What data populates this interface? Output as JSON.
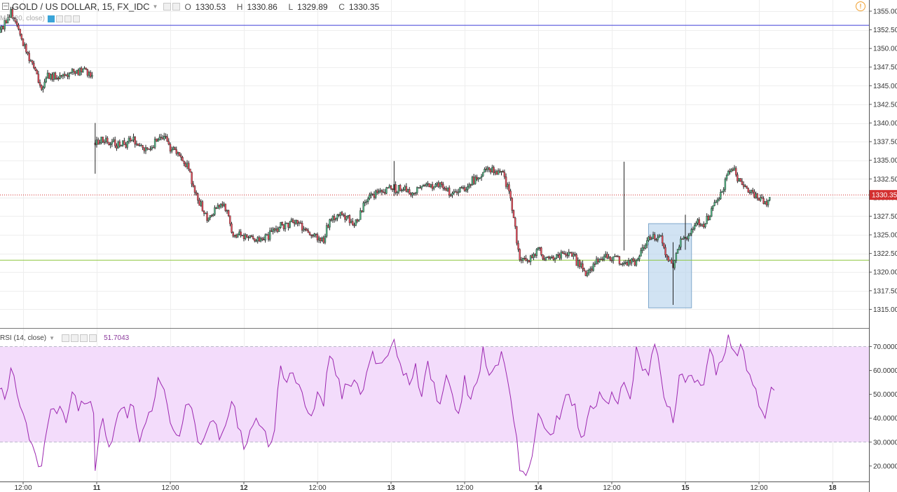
{
  "header": {
    "symbol": "GOLD / US DOLLAR, 15, FX_IDC",
    "open_label": "O",
    "open": "1330.53",
    "high_label": "H",
    "high": "1330.86",
    "low_label": "L",
    "low": "1329.89",
    "close_label": "C",
    "close": "1330.35"
  },
  "ma_legend": "MA (20, close)",
  "rsi_legend": {
    "label": "RSI (14, close)",
    "value": "51.7043"
  },
  "icons": [
    "minimize-icon",
    "caret-down-icon",
    "eye-icon",
    "gear-icon",
    "plus-icon",
    "close-icon",
    "alert-icon"
  ],
  "colors": {
    "up_candle": "#53b987",
    "down_candle": "#eb4d5c",
    "wick": "#222222",
    "rsi_line": "#9c27b0",
    "rsi_band": "#f3dcfb",
    "resistance_line": "#3f3fd8",
    "support_line": "#8dc63f",
    "last_price_line": "#d32f2f",
    "highlight_box": "#b8d4ec"
  },
  "chart_data": [
    {
      "type": "candlestick",
      "title": "GOLD / US DOLLAR, 15, FX_IDC",
      "x_ticks": [
        "12:00",
        "11",
        "12:00",
        "12",
        "12:00",
        "13",
        "12:00",
        "14",
        "12:00",
        "15",
        "12:00",
        "18"
      ],
      "y_ticks": [
        "1355.00",
        "1352.50",
        "1350.00",
        "1347.50",
        "1345.00",
        "1342.50",
        "1340.00",
        "1337.50",
        "1335.00",
        "1332.50",
        "1330.00",
        "1327.50",
        "1325.00",
        "1322.50",
        "1320.00",
        "1317.50",
        "1315.00"
      ],
      "ylim": [
        1312.5,
        1356.5
      ],
      "last_price": 1330.35,
      "last_price_label": "1330.35",
      "horizontal_lines": [
        {
          "name": "resistance",
          "value": 1353.1
        },
        {
          "name": "support",
          "value": 1321.6
        }
      ],
      "highlight_range": {
        "from": "14 18:00",
        "to": "15 01:00",
        "price_low": 1315.2,
        "price_high": 1326.5
      },
      "price_path": [
        [
          "10 08:00",
          1352.0
        ],
        [
          "10 10:00",
          1354.8
        ],
        [
          "10 11:00",
          1353.3
        ],
        [
          "10 12:00",
          1350.6
        ],
        [
          "10 14:00",
          1347.2
        ],
        [
          "10 15:00",
          1344.2
        ],
        [
          "10 16:00",
          1346.3
        ],
        [
          "10 18:00",
          1346.0
        ],
        [
          "10 20:00",
          1347.1
        ],
        [
          "10 22:00",
          1347.0
        ],
        [
          "10 23:30",
          1346.1
        ],
        [
          "10 23:45",
          1337.0
        ],
        [
          "11 01:00",
          1337.8
        ],
        [
          "11 04:00",
          1337.0
        ],
        [
          "11 06:00",
          1337.5
        ],
        [
          "11 08:00",
          1336.5
        ],
        [
          "11 09:00",
          1336.8
        ],
        [
          "11 10:00",
          1338.4
        ],
        [
          "11 11:00",
          1338.3
        ],
        [
          "11 12:00",
          1336.6
        ],
        [
          "11 14:00",
          1335.3
        ],
        [
          "11 15:00",
          1333.9
        ],
        [
          "11 16:00",
          1330.7
        ],
        [
          "11 18:00",
          1327.2
        ],
        [
          "11 20:00",
          1328.9
        ],
        [
          "11 21:00",
          1328.8
        ],
        [
          "11 22:00",
          1325.5
        ],
        [
          "11 23:00",
          1325.0
        ],
        [
          "12 01:00",
          1324.7
        ],
        [
          "12 03:00",
          1324.2
        ],
        [
          "12 04:00",
          1324.8
        ],
        [
          "12 06:00",
          1326.3
        ],
        [
          "12 08:00",
          1326.6
        ],
        [
          "12 10:00",
          1326.0
        ],
        [
          "12 12:00",
          1324.4
        ],
        [
          "12 13:00",
          1324.4
        ],
        [
          "12 14:00",
          1326.8
        ],
        [
          "12 16:00",
          1327.8
        ],
        [
          "12 18:00",
          1326.5
        ],
        [
          "12 20:00",
          1329.6
        ],
        [
          "12 22:00",
          1330.8
        ],
        [
          "13 00:00",
          1331.2
        ],
        [
          "13 02:00",
          1331.0
        ],
        [
          "13 04:00",
          1330.8
        ],
        [
          "13 06:00",
          1331.9
        ],
        [
          "13 08:00",
          1331.7
        ],
        [
          "13 10:00",
          1330.4
        ],
        [
          "13 12:00",
          1331.2
        ],
        [
          "13 14:00",
          1332.7
        ],
        [
          "13 16:00",
          1333.7
        ],
        [
          "13 18:00",
          1333.5
        ],
        [
          "13 19:00",
          1331.5
        ],
        [
          "13 20:00",
          1327.2
        ],
        [
          "13 21:00",
          1321.6
        ],
        [
          "13 23:00",
          1321.8
        ],
        [
          "14 00:00",
          1323.5
        ],
        [
          "14 01:00",
          1321.6
        ],
        [
          "14 03:00",
          1322.0
        ],
        [
          "14 05:00",
          1322.8
        ],
        [
          "14 07:00",
          1320.8
        ],
        [
          "14 08:00",
          1319.9
        ],
        [
          "14 10:00",
          1321.8
        ],
        [
          "14 12:00",
          1322.1
        ],
        [
          "14 14:00",
          1321.4
        ],
        [
          "14 16:00",
          1321.4
        ],
        [
          "14 18:00",
          1324.6
        ],
        [
          "14 20:00",
          1324.5
        ],
        [
          "14 21:00",
          1322.0
        ],
        [
          "14 22:00",
          1320.9
        ],
        [
          "14 23:00",
          1323.8
        ],
        [
          "15 00:00",
          1324.4
        ],
        [
          "15 01:00",
          1325.4
        ],
        [
          "15 02:00",
          1326.5
        ],
        [
          "15 03:00",
          1326.1
        ],
        [
          "15 04:00",
          1328.0
        ],
        [
          "15 06:00",
          1330.7
        ],
        [
          "15 07:00",
          1333.5
        ],
        [
          "15 08:00",
          1333.6
        ],
        [
          "15 09:00",
          1331.8
        ],
        [
          "15 10:00",
          1331.5
        ],
        [
          "15 11:00",
          1330.5
        ],
        [
          "15 12:00",
          1329.8
        ],
        [
          "15 13:00",
          1329.3
        ],
        [
          "15 14:00",
          1330.35
        ]
      ],
      "spikes": [
        {
          "time": "10 23:45",
          "low": 1333.2,
          "high": 1340.0
        },
        {
          "time": "13 00:30",
          "low": 1330.2,
          "high": 1334.9
        },
        {
          "time": "14 14:00",
          "low": 1322.9,
          "high": 1334.8
        },
        {
          "time": "14 22:00",
          "low": 1315.6,
          "high": 1324.0
        },
        {
          "time": "15 00:00",
          "low": 1323.0,
          "high": 1327.7
        }
      ]
    },
    {
      "type": "line",
      "title": "RSI (14, close)",
      "y_ticks": [
        "70.0000",
        "60.0000",
        "50.0000",
        "40.0000",
        "30.0000",
        "20.0000"
      ],
      "ylim": [
        13.5,
        77.5
      ],
      "bands": [
        30,
        70
      ],
      "series": [
        {
          "name": "RSI (14, close)",
          "values": [
            [
              "10 08:00",
              52
            ],
            [
              "10 09:00",
              48
            ],
            [
              "10 10:00",
              61
            ],
            [
              "10 11:00",
              50
            ],
            [
              "10 12:00",
              42
            ],
            [
              "10 13:00",
              31
            ],
            [
              "10 14:00",
              25
            ],
            [
              "10 15:00",
              20
            ],
            [
              "10 16:00",
              37
            ],
            [
              "10 17:00",
              44
            ],
            [
              "10 18:00",
              45
            ],
            [
              "10 19:00",
              38
            ],
            [
              "10 20:00",
              51
            ],
            [
              "10 21:00",
              43
            ],
            [
              "10 22:00",
              46
            ],
            [
              "10 23:00",
              47
            ],
            [
              "10 23:30",
              42
            ],
            [
              "10 23:45",
              18
            ],
            [
              "11 00:30",
              35
            ],
            [
              "11 01:00",
              40
            ],
            [
              "11 02:00",
              28
            ],
            [
              "11 03:00",
              37
            ],
            [
              "11 04:00",
              44
            ],
            [
              "11 05:00",
              40
            ],
            [
              "11 06:00",
              45
            ],
            [
              "11 07:00",
              30
            ],
            [
              "11 08:00",
              38
            ],
            [
              "11 09:00",
              43
            ],
            [
              "11 10:00",
              57
            ],
            [
              "11 11:00",
              52
            ],
            [
              "11 12:00",
              38
            ],
            [
              "11 13:00",
              33
            ],
            [
              "11 14:00",
              38
            ],
            [
              "11 15:00",
              46
            ],
            [
              "11 16:00",
              38
            ],
            [
              "11 17:00",
              29
            ],
            [
              "11 18:00",
              35
            ],
            [
              "11 19:00",
              39
            ],
            [
              "11 20:00",
              31
            ],
            [
              "11 21:00",
              37
            ],
            [
              "11 22:00",
              47
            ],
            [
              "11 23:00",
              36
            ],
            [
              "12 00:00",
              27
            ],
            [
              "12 01:00",
              35
            ],
            [
              "12 02:00",
              40
            ],
            [
              "12 03:00",
              36
            ],
            [
              "12 04:00",
              28
            ],
            [
              "12 05:00",
              35
            ],
            [
              "12 06:00",
              62
            ],
            [
              "12 07:00",
              55
            ],
            [
              "12 08:00",
              59
            ],
            [
              "12 09:00",
              54
            ],
            [
              "12 10:00",
              45
            ],
            [
              "12 11:00",
              41
            ],
            [
              "12 12:00",
              51
            ],
            [
              "12 13:00",
              45
            ],
            [
              "12 14:00",
              66
            ],
            [
              "12 15:00",
              58
            ],
            [
              "12 16:00",
              48
            ],
            [
              "12 17:00",
              54
            ],
            [
              "12 18:00",
              56
            ],
            [
              "12 19:00",
              50
            ],
            [
              "12 20:00",
              59
            ],
            [
              "12 21:00",
              68
            ],
            [
              "12 22:00",
              63
            ],
            [
              "12 23:00",
              65
            ],
            [
              "13 00:00",
              70
            ],
            [
              "13 00:30",
              73
            ],
            [
              "13 01:00",
              66
            ],
            [
              "13 02:00",
              58
            ],
            [
              "13 03:00",
              54
            ],
            [
              "13 04:00",
              63
            ],
            [
              "13 05:00",
              49
            ],
            [
              "13 06:00",
              64
            ],
            [
              "13 07:00",
              55
            ],
            [
              "13 08:00",
              46
            ],
            [
              "13 09:00",
              58
            ],
            [
              "13 10:00",
              50
            ],
            [
              "13 11:00",
              42
            ],
            [
              "13 12:00",
              58
            ],
            [
              "13 13:00",
              48
            ],
            [
              "13 14:00",
              55
            ],
            [
              "13 15:00",
              70
            ],
            [
              "13 16:00",
              58
            ],
            [
              "13 17:00",
              62
            ],
            [
              "13 18:00",
              68
            ],
            [
              "13 19:00",
              56
            ],
            [
              "13 20:00",
              39
            ],
            [
              "13 21:00",
              18
            ],
            [
              "13 22:00",
              16
            ],
            [
              "13 23:00",
              24
            ],
            [
              "14 00:00",
              42
            ],
            [
              "14 01:00",
              36
            ],
            [
              "14 02:00",
              33
            ],
            [
              "14 03:00",
              41
            ],
            [
              "14 04:00",
              45
            ],
            [
              "14 05:00",
              50
            ],
            [
              "14 06:00",
              46
            ],
            [
              "14 07:00",
              32
            ],
            [
              "14 08:00",
              40
            ],
            [
              "14 09:00",
              44
            ],
            [
              "14 10:00",
              51
            ],
            [
              "14 11:00",
              47
            ],
            [
              "14 12:00",
              51
            ],
            [
              "14 13:00",
              46
            ],
            [
              "14 14:00",
              55
            ],
            [
              "14 15:00",
              48
            ],
            [
              "14 16:00",
              70
            ],
            [
              "14 17:00",
              60
            ],
            [
              "14 18:00",
              58
            ],
            [
              "14 19:00",
              71
            ],
            [
              "14 20:00",
              58
            ],
            [
              "14 21:00",
              45
            ],
            [
              "14 22:00",
              38
            ],
            [
              "14 23:00",
              58
            ],
            [
              "15 00:00",
              55
            ],
            [
              "15 01:00",
              58
            ],
            [
              "15 02:00",
              56
            ],
            [
              "15 03:00",
              54
            ],
            [
              "15 04:00",
              69
            ],
            [
              "15 05:00",
              58
            ],
            [
              "15 06:00",
              64
            ],
            [
              "15 07:00",
              75
            ],
            [
              "15 08:00",
              68
            ],
            [
              "15 09:00",
              71
            ],
            [
              "15 10:00",
              60
            ],
            [
              "15 11:00",
              54
            ],
            [
              "15 12:00",
              45
            ],
            [
              "15 13:00",
              40
            ],
            [
              "15 14:00",
              53
            ],
            [
              "15 14:30",
              51.7
            ]
          ]
        }
      ]
    }
  ]
}
